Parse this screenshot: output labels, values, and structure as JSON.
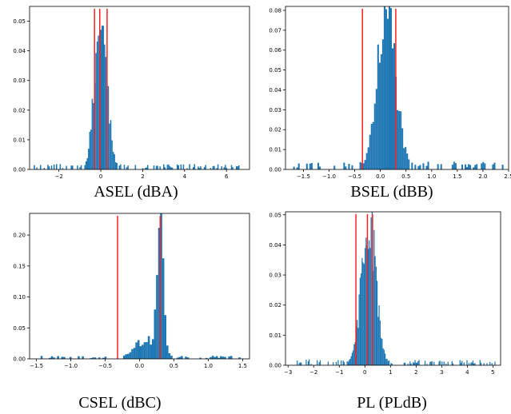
{
  "colors": {
    "bar": "#1f77b4",
    "marker": "#ff2020",
    "axis": "#000000"
  },
  "chart_data": [
    {
      "type": "bar",
      "caption": "ASEL (dBA)",
      "xlim": [
        -3.4,
        7.1
      ],
      "ylim": [
        0,
        0.055
      ],
      "xticks": [
        -2,
        0,
        2,
        4,
        6
      ],
      "xtick_labels": [
        "−2",
        "0",
        "2",
        "4",
        "6"
      ],
      "yticks": [
        0.0,
        0.01,
        0.02,
        0.03,
        0.04,
        0.05
      ],
      "ytick_labels": [
        "0.00",
        "0.01",
        "0.02",
        "0.03",
        "0.04",
        "0.05"
      ],
      "vlines": [
        -0.3,
        -0.05,
        0.3
      ],
      "hist": {
        "center": 0.0,
        "sigma": 0.3,
        "peak": 0.048,
        "xmin": -3.2,
        "xmax": 6.8,
        "nbins": 170,
        "tail": 0.0014
      }
    },
    {
      "type": "bar",
      "caption": "BSEL (dBB)",
      "xlim": [
        -1.85,
        2.5
      ],
      "ylim": [
        0,
        0.082
      ],
      "xticks": [
        -1.5,
        -1.0,
        -0.5,
        0.0,
        0.5,
        1.0,
        1.5,
        2.0,
        2.5
      ],
      "xtick_labels": [
        "−1.5",
        "−1.0",
        "−0.5",
        "0.0",
        "0.5",
        "1.0",
        "1.5",
        "2.0",
        "2.5"
      ],
      "yticks": [
        0.0,
        0.01,
        0.02,
        0.03,
        0.04,
        0.05,
        0.06,
        0.07,
        0.08
      ],
      "ytick_labels": [
        "0.00",
        "0.01",
        "0.02",
        "0.03",
        "0.04",
        "0.05",
        "0.06",
        "0.07",
        "0.08"
      ],
      "vlines": [
        -0.35,
        0.3
      ],
      "hist": {
        "center": 0.12,
        "sigma": 0.18,
        "peak": 0.079,
        "xmin": -1.7,
        "xmax": 2.4,
        "nbins": 130,
        "tail": 0.003
      }
    },
    {
      "type": "bar",
      "caption": "CSEL (dBC)",
      "xlim": [
        -1.6,
        1.6
      ],
      "ylim": [
        0,
        0.235
      ],
      "xticks": [
        -1.5,
        -1.0,
        -0.5,
        0.0,
        0.5,
        1.0,
        1.5
      ],
      "xtick_labels": [
        "−1.5",
        "−1.0",
        "−0.5",
        "0.0",
        "0.5",
        "1.0",
        "1.5"
      ],
      "yticks": [
        0.0,
        0.05,
        0.1,
        0.15,
        0.2
      ],
      "ytick_labels": [
        "0.00",
        "0.05",
        "0.10",
        "0.15",
        "0.20"
      ],
      "vlines": [
        -0.32,
        0.3
      ],
      "hist": {
        "center": 0.3,
        "sigma": 0.045,
        "peak": 0.23,
        "xmin": -1.5,
        "xmax": 1.5,
        "nbins": 100,
        "tail": 0.004,
        "shoulder": {
          "center": 0.1,
          "sigma": 0.18,
          "height": 0.03
        }
      }
    },
    {
      "type": "bar",
      "caption": "PL (PLdB)",
      "xlim": [
        -3.1,
        5.3
      ],
      "ylim": [
        0,
        0.051
      ],
      "xticks": [
        -3,
        -2,
        -1,
        0,
        1,
        2,
        3,
        4,
        5
      ],
      "xtick_labels": [
        "−3",
        "−2",
        "−1",
        "0",
        "1",
        "2",
        "3",
        "4",
        "5"
      ],
      "yticks": [
        0.0,
        0.01,
        0.02,
        0.03,
        0.04,
        0.05
      ],
      "ytick_labels": [
        "0.00",
        "0.01",
        "0.02",
        "0.03",
        "0.04",
        "0.05"
      ],
      "vlines": [
        -0.35,
        0.1,
        0.3
      ],
      "hist": {
        "center": 0.15,
        "sigma": 0.28,
        "peak": 0.049,
        "xmin": -2.7,
        "xmax": 5.1,
        "nbins": 200,
        "tail": 0.0015
      }
    }
  ]
}
